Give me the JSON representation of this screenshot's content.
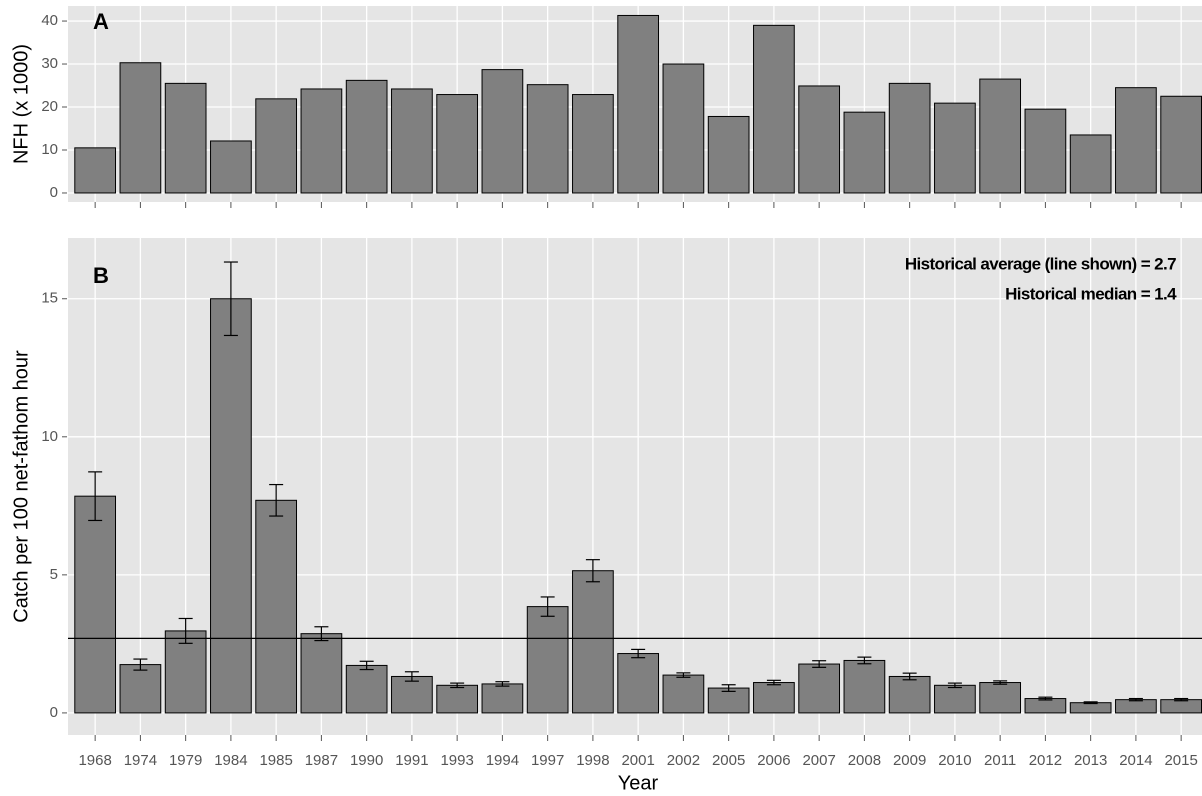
{
  "chart_data": [
    {
      "type": "bar",
      "panel_label": "A",
      "y_label": "NFH (x 1000)",
      "values": [
        10.5,
        30.3,
        25.5,
        12.1,
        21.9,
        24.2,
        26.2,
        24.2,
        22.9,
        28.7,
        25.2,
        22.9,
        41.3,
        30.0,
        17.8,
        39.0,
        24.9,
        18.8,
        25.5,
        20.9,
        26.5,
        19.5,
        13.5,
        24.5,
        22.5
      ],
      "color": "#808080",
      "ylim": [
        -2.1,
        43.5
      ],
      "yticks": [
        0,
        10,
        20,
        30,
        40
      ],
      "grid": true
    },
    {
      "type": "bar",
      "panel_label": "B",
      "x_label": "Year",
      "y_label": "Catch per 100 net-fathom hour",
      "categories": [
        "1968",
        "1974",
        "1979",
        "1984",
        "1985",
        "1987",
        "1990",
        "1991",
        "1993",
        "1994",
        "1997",
        "1998",
        "2001",
        "2002",
        "2005",
        "2006",
        "2007",
        "2008",
        "2009",
        "2010",
        "2011",
        "2012",
        "2013",
        "2014",
        "2015"
      ],
      "values": [
        7.85,
        1.75,
        2.97,
        15.0,
        7.7,
        2.87,
        1.72,
        1.32,
        1.0,
        1.05,
        3.85,
        5.15,
        2.15,
        1.37,
        0.9,
        1.1,
        1.77,
        1.9,
        1.32,
        1.0,
        1.1,
        0.52,
        0.37,
        0.48,
        0.48
      ],
      "errors": [
        0.88,
        0.2,
        0.45,
        1.33,
        0.57,
        0.25,
        0.15,
        0.17,
        0.08,
        0.08,
        0.35,
        0.4,
        0.15,
        0.08,
        0.12,
        0.08,
        0.12,
        0.12,
        0.12,
        0.08,
        0.06,
        0.05,
        0.03,
        0.04,
        0.04
      ],
      "average_line": 2.7,
      "annotations": [
        "Historical average (line shown) = 2.7",
        "Historical median = 1.4"
      ],
      "color": "#808080",
      "ylim": [
        -0.8,
        17.2
      ],
      "yticks": [
        0,
        5,
        10,
        15
      ],
      "grid": true
    }
  ]
}
